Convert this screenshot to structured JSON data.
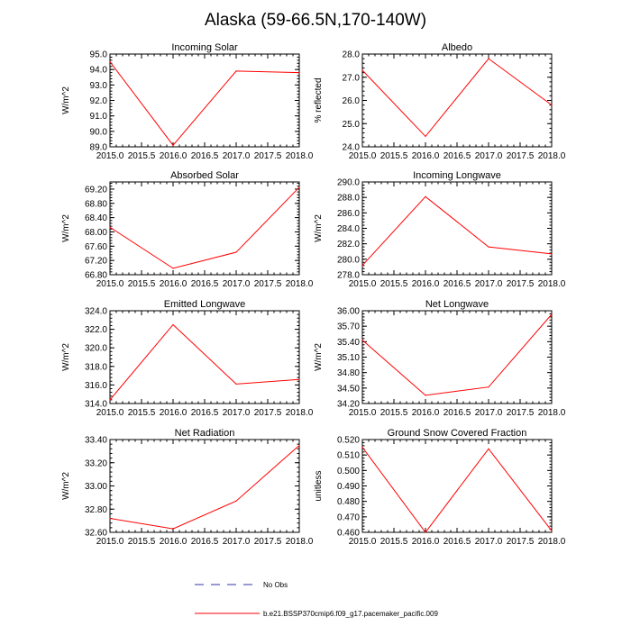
{
  "figure": {
    "title": "Alaska (59-66.5N,170-140W)"
  },
  "colors": {
    "model_line": "#ff0000",
    "obs_line": "#3333aa",
    "axis": "#000000"
  },
  "legend": {
    "obs_label": "No Obs",
    "model_label": "b.e21.BSSP370cmip6.f09_g17.pacemaker_pacific.009"
  },
  "chart_data": [
    {
      "type": "line",
      "title": "Incoming Solar",
      "ylabel": "W/m^2",
      "xlabel": "",
      "x": [
        2015.0,
        2016.0,
        2017.0,
        2018.0
      ],
      "series": [
        {
          "values": [
            94.5,
            89.1,
            93.9,
            93.8
          ]
        }
      ],
      "xlim": [
        2015.0,
        2018.0
      ],
      "ylim": [
        89.0,
        95.0
      ],
      "xticks": [
        "2015.0",
        "2015.5",
        "2016.0",
        "2016.5",
        "2017.0",
        "2017.5",
        "2018.0"
      ],
      "yticks": [
        "89.0",
        "90.0",
        "91.0",
        "92.0",
        "93.0",
        "94.0",
        "95.0"
      ],
      "grid": false
    },
    {
      "type": "line",
      "title": "Albedo",
      "ylabel": "% reflected",
      "xlabel": "",
      "x": [
        2015.0,
        2016.0,
        2017.0,
        2018.0
      ],
      "series": [
        {
          "values": [
            27.3,
            24.45,
            27.8,
            25.8
          ]
        }
      ],
      "xlim": [
        2015.0,
        2018.0
      ],
      "ylim": [
        24.0,
        28.0
      ],
      "xticks": [
        "2015.0",
        "2015.5",
        "2016.0",
        "2016.5",
        "2017.0",
        "2017.5",
        "2018.0"
      ],
      "yticks": [
        "24.0",
        "25.0",
        "26.0",
        "27.0",
        "28.0"
      ],
      "grid": false
    },
    {
      "type": "line",
      "title": "Absorbed Solar",
      "ylabel": "W/m^2",
      "xlabel": "",
      "x": [
        2015.0,
        2016.0,
        2017.0,
        2018.0
      ],
      "series": [
        {
          "values": [
            68.13,
            66.98,
            67.43,
            69.25
          ]
        }
      ],
      "xlim": [
        2015.0,
        2018.0
      ],
      "ylim": [
        66.8,
        69.4
      ],
      "xticks": [
        "2015.0",
        "2015.5",
        "2016.0",
        "2016.5",
        "2017.0",
        "2017.5",
        "2018.0"
      ],
      "yticks": [
        "66.80",
        "67.20",
        "67.60",
        "68.00",
        "68.40",
        "68.80",
        "69.20"
      ],
      "grid": false
    },
    {
      "type": "line",
      "title": "Incoming Longwave",
      "ylabel": "W/m^2",
      "xlabel": "",
      "x": [
        2015.0,
        2016.0,
        2017.0,
        2018.0
      ],
      "series": [
        {
          "values": [
            279.2,
            288.1,
            281.6,
            280.7
          ]
        }
      ],
      "xlim": [
        2015.0,
        2018.0
      ],
      "ylim": [
        278.0,
        290.0
      ],
      "xticks": [
        "2015.0",
        "2015.5",
        "2016.0",
        "2016.5",
        "2017.0",
        "2017.5",
        "2018.0"
      ],
      "yticks": [
        "278.0",
        "280.0",
        "282.0",
        "284.0",
        "286.0",
        "288.0",
        "290.0"
      ],
      "grid": false
    },
    {
      "type": "line",
      "title": "Emitted Longwave",
      "ylabel": "W/m^2",
      "xlabel": "",
      "x": [
        2015.0,
        2016.0,
        2017.0,
        2018.0
      ],
      "series": [
        {
          "values": [
            314.4,
            322.5,
            316.1,
            316.6
          ]
        }
      ],
      "xlim": [
        2015.0,
        2018.0
      ],
      "ylim": [
        314.0,
        324.0
      ],
      "xticks": [
        "2015.0",
        "2015.5",
        "2016.0",
        "2016.5",
        "2017.0",
        "2017.5",
        "2018.0"
      ],
      "yticks": [
        "314.0",
        "316.0",
        "318.0",
        "320.0",
        "322.0",
        "324.0"
      ],
      "grid": false
    },
    {
      "type": "line",
      "title": "Net Longwave",
      "ylabel": "W/m^2",
      "xlabel": "",
      "x": [
        2015.0,
        2016.0,
        2017.0,
        2018.0
      ],
      "series": [
        {
          "values": [
            35.43,
            34.36,
            34.52,
            35.93
          ]
        }
      ],
      "xlim": [
        2015.0,
        2018.0
      ],
      "ylim": [
        34.2,
        36.0
      ],
      "xticks": [
        "2015.0",
        "2015.5",
        "2016.0",
        "2016.5",
        "2017.0",
        "2017.5",
        "2018.0"
      ],
      "yticks": [
        "34.20",
        "34.50",
        "34.80",
        "35.10",
        "35.40",
        "35.70",
        "36.00"
      ],
      "grid": false
    },
    {
      "type": "line",
      "title": "Net Radiation",
      "ylabel": "W/m^2",
      "xlabel": "",
      "x": [
        2015.0,
        2016.0,
        2017.0,
        2018.0
      ],
      "series": [
        {
          "values": [
            32.72,
            32.63,
            32.87,
            33.35
          ]
        }
      ],
      "xlim": [
        2015.0,
        2018.0
      ],
      "ylim": [
        32.6,
        33.4
      ],
      "xticks": [
        "2015.0",
        "2015.5",
        "2016.0",
        "2016.5",
        "2017.0",
        "2017.5",
        "2018.0"
      ],
      "yticks": [
        "32.60",
        "32.80",
        "33.00",
        "33.20",
        "33.40"
      ],
      "grid": false
    },
    {
      "type": "line",
      "title": "Ground Snow Covered Fraction",
      "ylabel": "unitless",
      "xlabel": "",
      "x": [
        2015.0,
        2016.0,
        2017.0,
        2018.0
      ],
      "series": [
        {
          "values": [
            0.515,
            0.46,
            0.514,
            0.461
          ]
        }
      ],
      "xlim": [
        2015.0,
        2018.0
      ],
      "ylim": [
        0.46,
        0.52
      ],
      "xticks": [
        "2015.0",
        "2015.5",
        "2016.0",
        "2016.5",
        "2017.0",
        "2017.5",
        "2018.0"
      ],
      "yticks": [
        "0.460",
        "0.470",
        "0.480",
        "0.490",
        "0.500",
        "0.510",
        "0.520"
      ],
      "grid": false
    }
  ]
}
